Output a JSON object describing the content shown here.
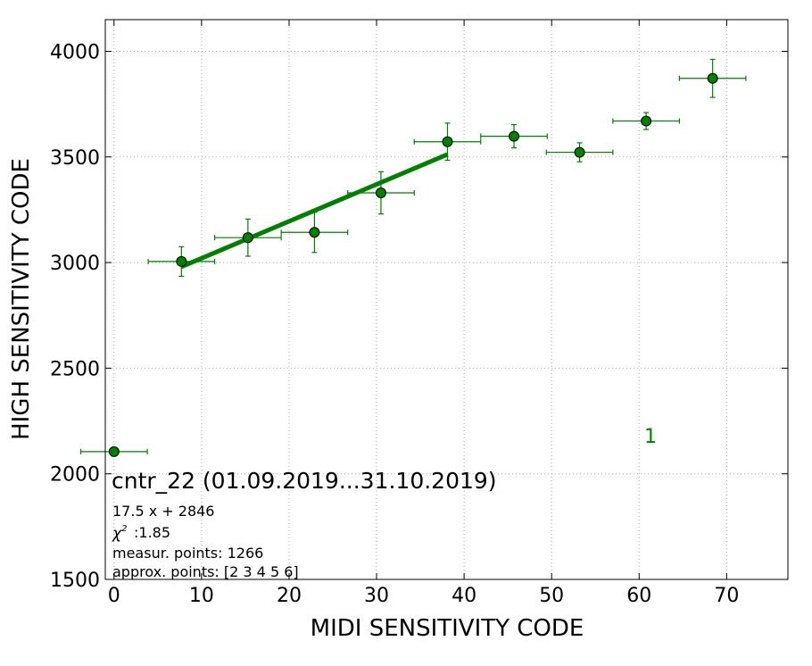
{
  "chart_data": {
    "type": "scatter",
    "xlabel": "MIDI SENSITIVITY CODE",
    "ylabel": "HIGH SENSITIVITY CODE",
    "xlim": [
      -1,
      77
    ],
    "ylim": [
      1500,
      4150
    ],
    "xticks": [
      0,
      10,
      20,
      30,
      40,
      50,
      60,
      70
    ],
    "yticks": [
      1500,
      2000,
      2500,
      3000,
      3500,
      4000
    ],
    "grid": true,
    "colors": {
      "points": "#008000",
      "edge": "#000000",
      "fit": "#008000",
      "label": "#008000"
    },
    "series": [
      {
        "points": [
          {
            "x": 0,
            "y": 2105,
            "xerr": 3.8,
            "yerr": 0
          },
          {
            "x": 7.7,
            "y": 3005,
            "xerr": 3.8,
            "yerr": 70
          },
          {
            "x": 15.3,
            "y": 3118,
            "xerr": 3.8,
            "yerr": 88
          },
          {
            "x": 22.9,
            "y": 3143,
            "xerr": 3.8,
            "yerr": 95
          },
          {
            "x": 30.5,
            "y": 3330,
            "xerr": 3.8,
            "yerr": 100
          },
          {
            "x": 38.1,
            "y": 3572,
            "xerr": 3.8,
            "yerr": 88
          },
          {
            "x": 45.7,
            "y": 3598,
            "xerr": 3.8,
            "yerr": 55
          },
          {
            "x": 53.2,
            "y": 3522,
            "xerr": 3.8,
            "yerr": 45
          },
          {
            "x": 60.8,
            "y": 3670,
            "xerr": 3.8,
            "yerr": 40
          },
          {
            "x": 68.4,
            "y": 3872,
            "xerr": 3.8,
            "yerr": 90
          }
        ]
      }
    ],
    "fit_line": {
      "x": [
        7.7,
        38.1
      ],
      "y": [
        2980,
        3512
      ]
    },
    "point_label": {
      "text": "1",
      "x": 61.3,
      "y": 2180
    },
    "info": {
      "title": "cntr_22 (01.09.2019...31.10.2019)",
      "equation": "17.5 x + 2846",
      "chi2_value": ":1.85",
      "measured": "measur. points: 1266",
      "approx": "approx. points: [2 3 4 5 6]"
    }
  }
}
